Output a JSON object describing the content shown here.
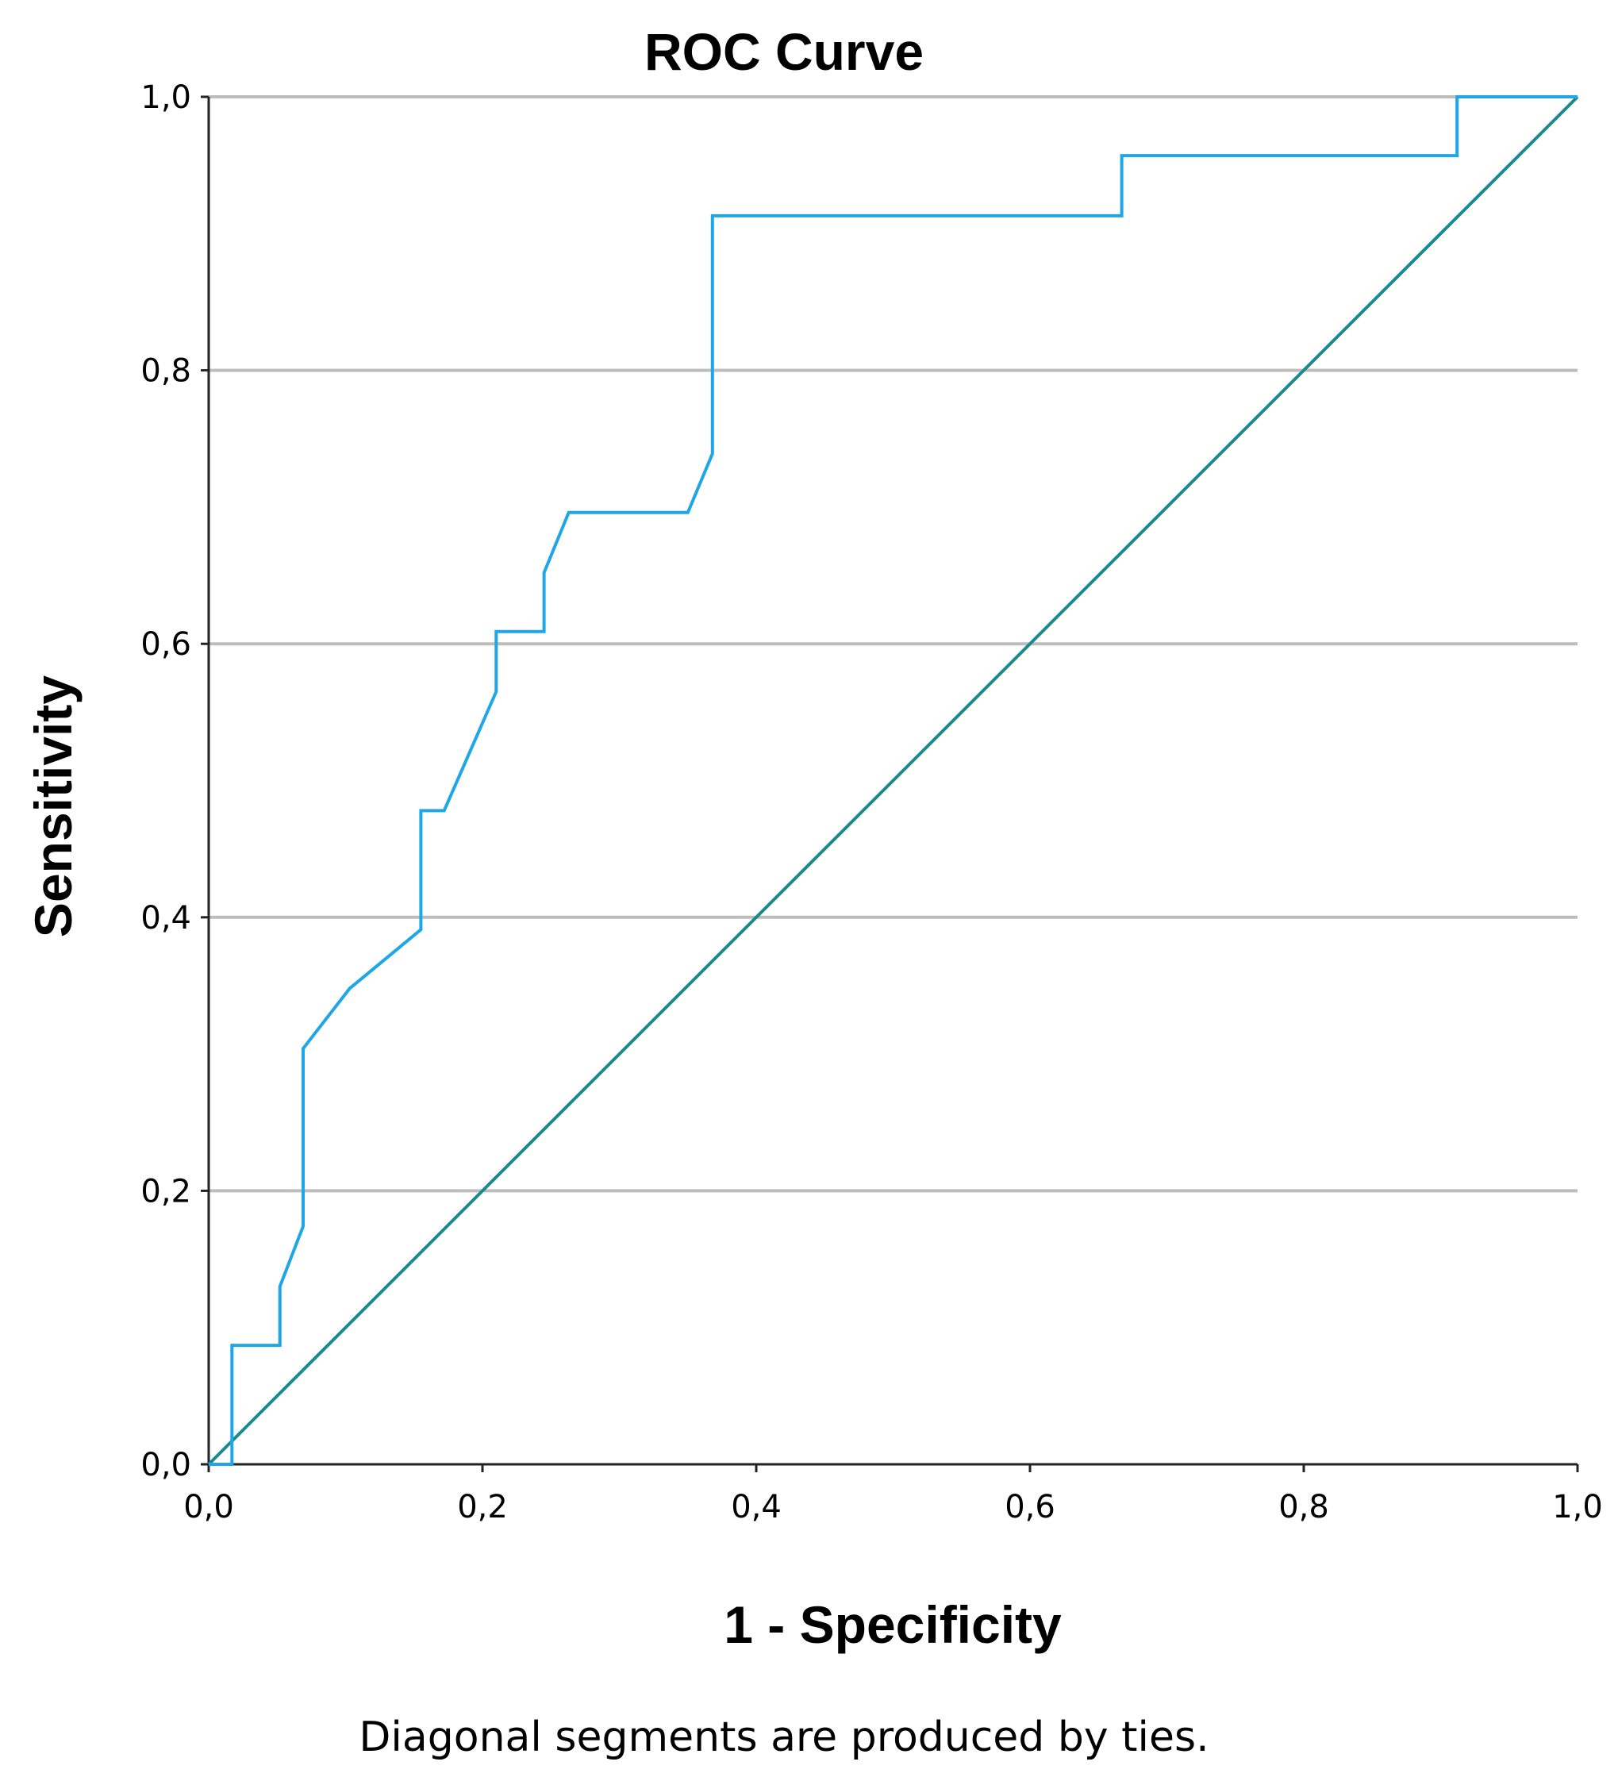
{
  "chart_data": {
    "type": "line",
    "title": "ROC Curve",
    "xlabel": "1 - Specificity",
    "ylabel": "Sensitivity",
    "xlim": [
      0,
      1
    ],
    "ylim": [
      0,
      1
    ],
    "x_ticks": [
      "0,0",
      "0,2",
      "0,4",
      "0,6",
      "0,8",
      "1,0"
    ],
    "y_ticks": [
      "0,0",
      "0,2",
      "0,4",
      "0,6",
      "0,8",
      "1,0"
    ],
    "grid": "horizontal",
    "footnote": "Diagonal segments are produced by ties.",
    "colors": {
      "roc": "#1ea6e6",
      "reference": "#1a8a8a",
      "grid": "#bdbdbd"
    },
    "series": [
      {
        "points": [
          [
            0.0,
            0.0
          ],
          [
            0.017,
            0.0
          ],
          [
            0.017,
            0.087
          ],
          [
            0.052,
            0.087
          ],
          [
            0.052,
            0.13
          ],
          [
            0.069,
            0.174
          ],
          [
            0.069,
            0.304
          ],
          [
            0.103,
            0.348
          ],
          [
            0.155,
            0.391
          ],
          [
            0.155,
            0.478
          ],
          [
            0.172,
            0.478
          ],
          [
            0.21,
            0.565
          ],
          [
            0.21,
            0.609
          ],
          [
            0.245,
            0.609
          ],
          [
            0.245,
            0.652
          ],
          [
            0.263,
            0.696
          ],
          [
            0.35,
            0.696
          ],
          [
            0.368,
            0.739
          ],
          [
            0.368,
            0.913
          ],
          [
            0.667,
            0.913
          ],
          [
            0.667,
            0.957
          ],
          [
            0.912,
            0.957
          ],
          [
            0.912,
            1.0
          ],
          [
            1.0,
            1.0
          ]
        ]
      },
      {
        "points": [
          [
            0.0,
            0.0
          ],
          [
            1.0,
            1.0
          ]
        ]
      }
    ]
  }
}
